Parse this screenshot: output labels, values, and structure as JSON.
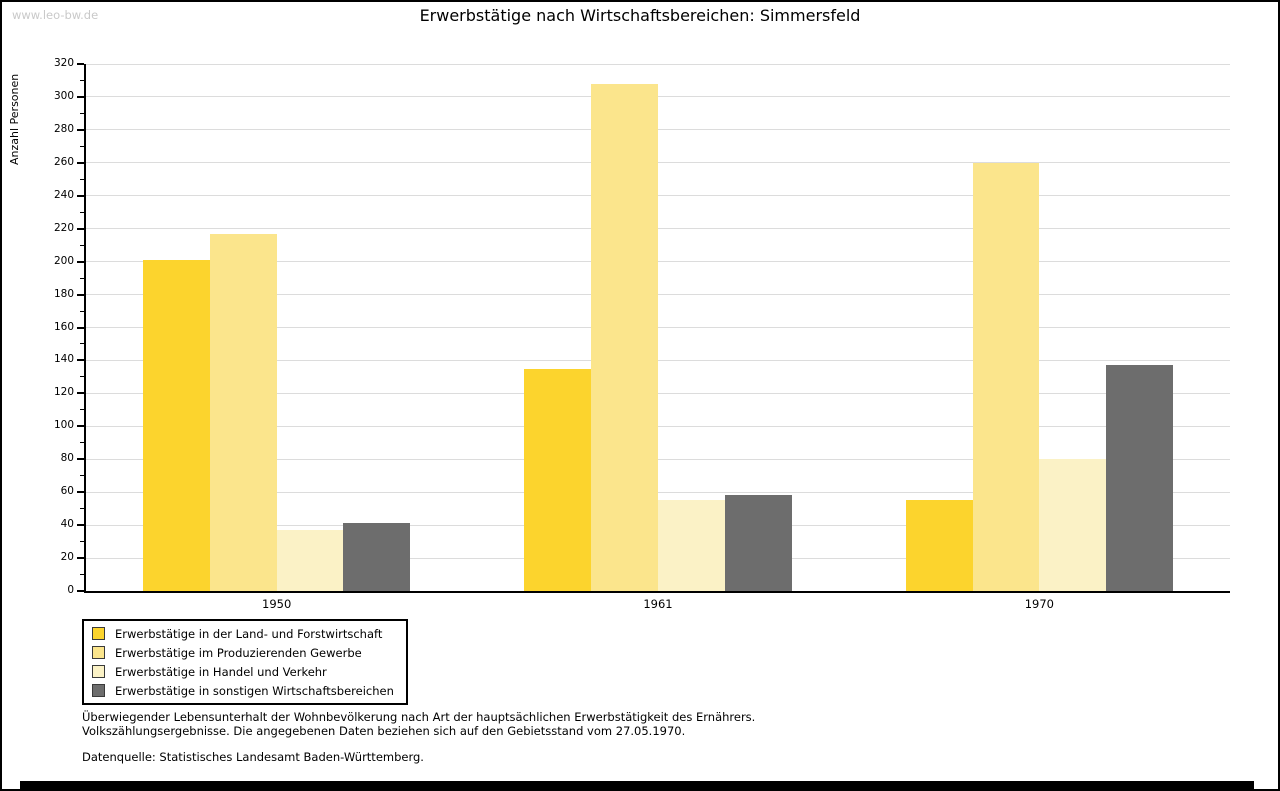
{
  "page": {
    "watermark": "www.leo-bw.de"
  },
  "chart_data": {
    "type": "bar",
    "title": "Erwerbstätige nach Wirtschaftsbereichen: Simmersfeld",
    "xlabel": "",
    "ylabel": "Anzahl Personen",
    "ylim": [
      0,
      320
    ],
    "ytick_step": 20,
    "yticks": [
      0,
      20,
      40,
      60,
      80,
      100,
      120,
      140,
      160,
      180,
      200,
      220,
      240,
      260,
      280,
      300,
      320
    ],
    "grid": true,
    "gridcolor": "#dcdcdc",
    "legend_position": "below-left",
    "categories": [
      "1950",
      "1961",
      "1970"
    ],
    "series": [
      {
        "name": "Erwerbstätige in der Land- und Forstwirtschaft",
        "color": "#fcd42d",
        "values": [
          201,
          135,
          55
        ]
      },
      {
        "name": "Erwerbstätige im Produzierenden Gewerbe",
        "color": "#fbe58c",
        "values": [
          217,
          308,
          260
        ]
      },
      {
        "name": "Erwerbstätige in Handel und Verkehr",
        "color": "#fbf2c6",
        "values": [
          37,
          55,
          80
        ]
      },
      {
        "name": "Erwerbstätige in sonstigen Wirtschaftsbereichen",
        "color": "#6d6d6d",
        "values": [
          41,
          58,
          137
        ]
      }
    ]
  },
  "footnotes": {
    "line1": "Überwiegender Lebensunterhalt der Wohnbevölkerung nach Art der hauptsächlichen Erwerbstätigkeit des Ernährers.",
    "line2": "Volkszählungsergebnisse. Die angegebenen Daten beziehen sich auf den Gebietsstand vom 27.05.1970.",
    "source": "Datenquelle: Statistisches Landesamt Baden-Württemberg."
  }
}
